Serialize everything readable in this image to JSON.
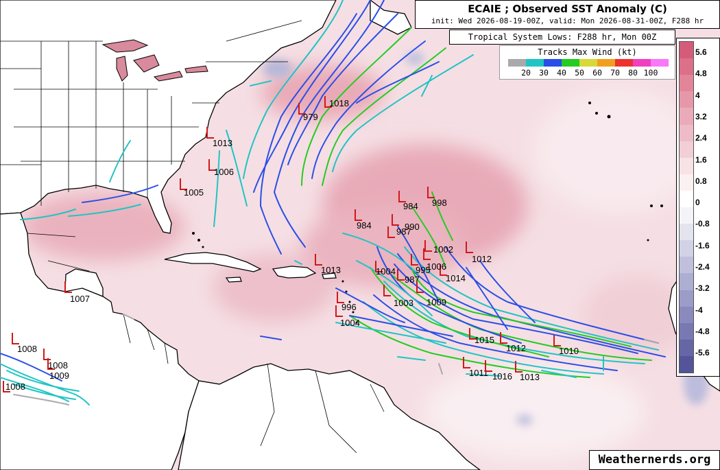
{
  "header": {
    "title": "ECAIE ; Observed SST Anomaly (C)",
    "subtitle": "init: Wed 2026-08-19-00Z, valid: Mon 2026-08-31-00Z, F288 hr"
  },
  "lows_header": "Tropical System Lows: F288 hr, Mon 00Z",
  "tracks_legend": {
    "title": "Tracks Max Wind (kt)",
    "colors": [
      "#aaaaaa",
      "#20c4c4",
      "#2a4ee8",
      "#22cc22",
      "#d8d838",
      "#f0a020",
      "#ee3030",
      "#f040c0",
      "#f878f8"
    ],
    "labels": [
      "20",
      "30",
      "40",
      "50",
      "60",
      "70",
      "80",
      "100"
    ]
  },
  "colorbar": {
    "labels": [
      "5.6",
      "4.8",
      "4",
      "3.2",
      "2.4",
      "1.6",
      "0.8",
      "0",
      "-0.8",
      "-1.6",
      "-2.4",
      "-3.2",
      "-4",
      "-4.8",
      "-5.6"
    ],
    "colors": [
      "#d45c78",
      "#dc7088",
      "#e28598",
      "#e698aa",
      "#eaaaba",
      "#eebcc8",
      "#f2ced6",
      "#f7e2e6",
      "#fbf0f2",
      "#ffffff",
      "#f4f4f8",
      "#e4e4ee",
      "#d2d2e6",
      "#c0c0dc",
      "#aeaed2",
      "#9c9cc8",
      "#8a8abe",
      "#7878b2",
      "#6666a6",
      "#54549a"
    ]
  },
  "lows": [
    {
      "label": "1018"
    },
    {
      "label": "979"
    },
    {
      "label": "1013"
    },
    {
      "label": "1006"
    },
    {
      "label": "1005"
    },
    {
      "label": "998"
    },
    {
      "label": "984"
    },
    {
      "label": "984"
    },
    {
      "label": "990"
    },
    {
      "label": "987"
    },
    {
      "label": "1002"
    },
    {
      "label": "1012"
    },
    {
      "label": "1013"
    },
    {
      "label": "1004"
    },
    {
      "label": "1014"
    },
    {
      "label": "1006"
    },
    {
      "label": "995"
    },
    {
      "label": "987"
    },
    {
      "label": "1009"
    },
    {
      "label": "1003"
    },
    {
      "label": "996"
    },
    {
      "label": "1004"
    },
    {
      "label": "1007"
    },
    {
      "label": "1008"
    },
    {
      "label": "1008"
    },
    {
      "label": "1009"
    },
    {
      "label": "1008"
    },
    {
      "label": "1015"
    },
    {
      "label": "1012"
    },
    {
      "label": "1010"
    },
    {
      "label": "1011"
    },
    {
      "label": "1016"
    },
    {
      "label": "1013"
    }
  ],
  "brand": "Weathernerds.org"
}
